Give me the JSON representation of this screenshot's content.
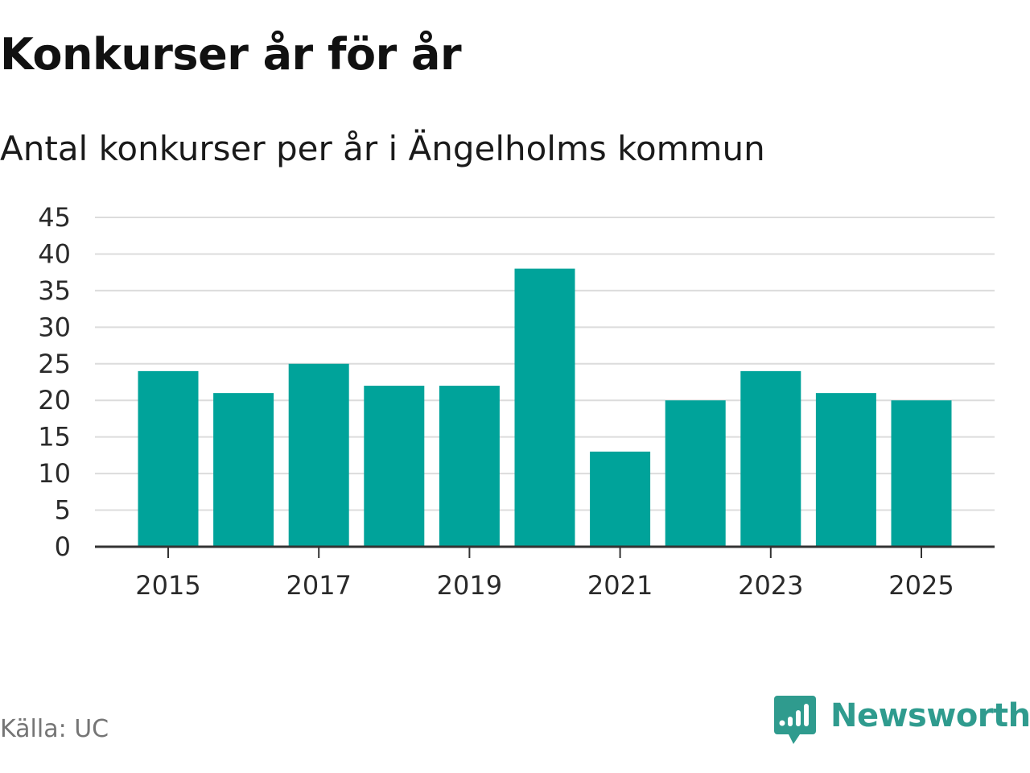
{
  "header": {
    "title": "Konkurser år för år",
    "subtitle": "Antal konkurser per år i Ängelholms kommun"
  },
  "footer": {
    "source": "Källa: UC",
    "brand": "Newsworthy"
  },
  "colors": {
    "bar": "#00a39a",
    "grid": "#dcdcdc",
    "axis": "#333333",
    "brand": "#2f9b8e"
  },
  "icons": {
    "brand_logo": "newsworthy-logo-icon"
  },
  "chart_data": {
    "type": "bar",
    "title": "Konkurser år för år",
    "subtitle": "Antal konkurser per år i Ängelholms kommun",
    "xlabel": "",
    "ylabel": "",
    "categories": [
      "2015",
      "2016",
      "2017",
      "2018",
      "2019",
      "2020",
      "2021",
      "2022",
      "2023",
      "2024",
      "2025"
    ],
    "values": [
      24,
      21,
      25,
      22,
      22,
      38,
      13,
      20,
      24,
      21,
      20
    ],
    "x_tick_labels": [
      "2015",
      "2017",
      "2019",
      "2021",
      "2023",
      "2025"
    ],
    "y_ticks": [
      0,
      5,
      10,
      15,
      20,
      25,
      30,
      35,
      40,
      45
    ],
    "ylim": [
      0,
      45
    ],
    "grid": true,
    "legend": "none"
  }
}
